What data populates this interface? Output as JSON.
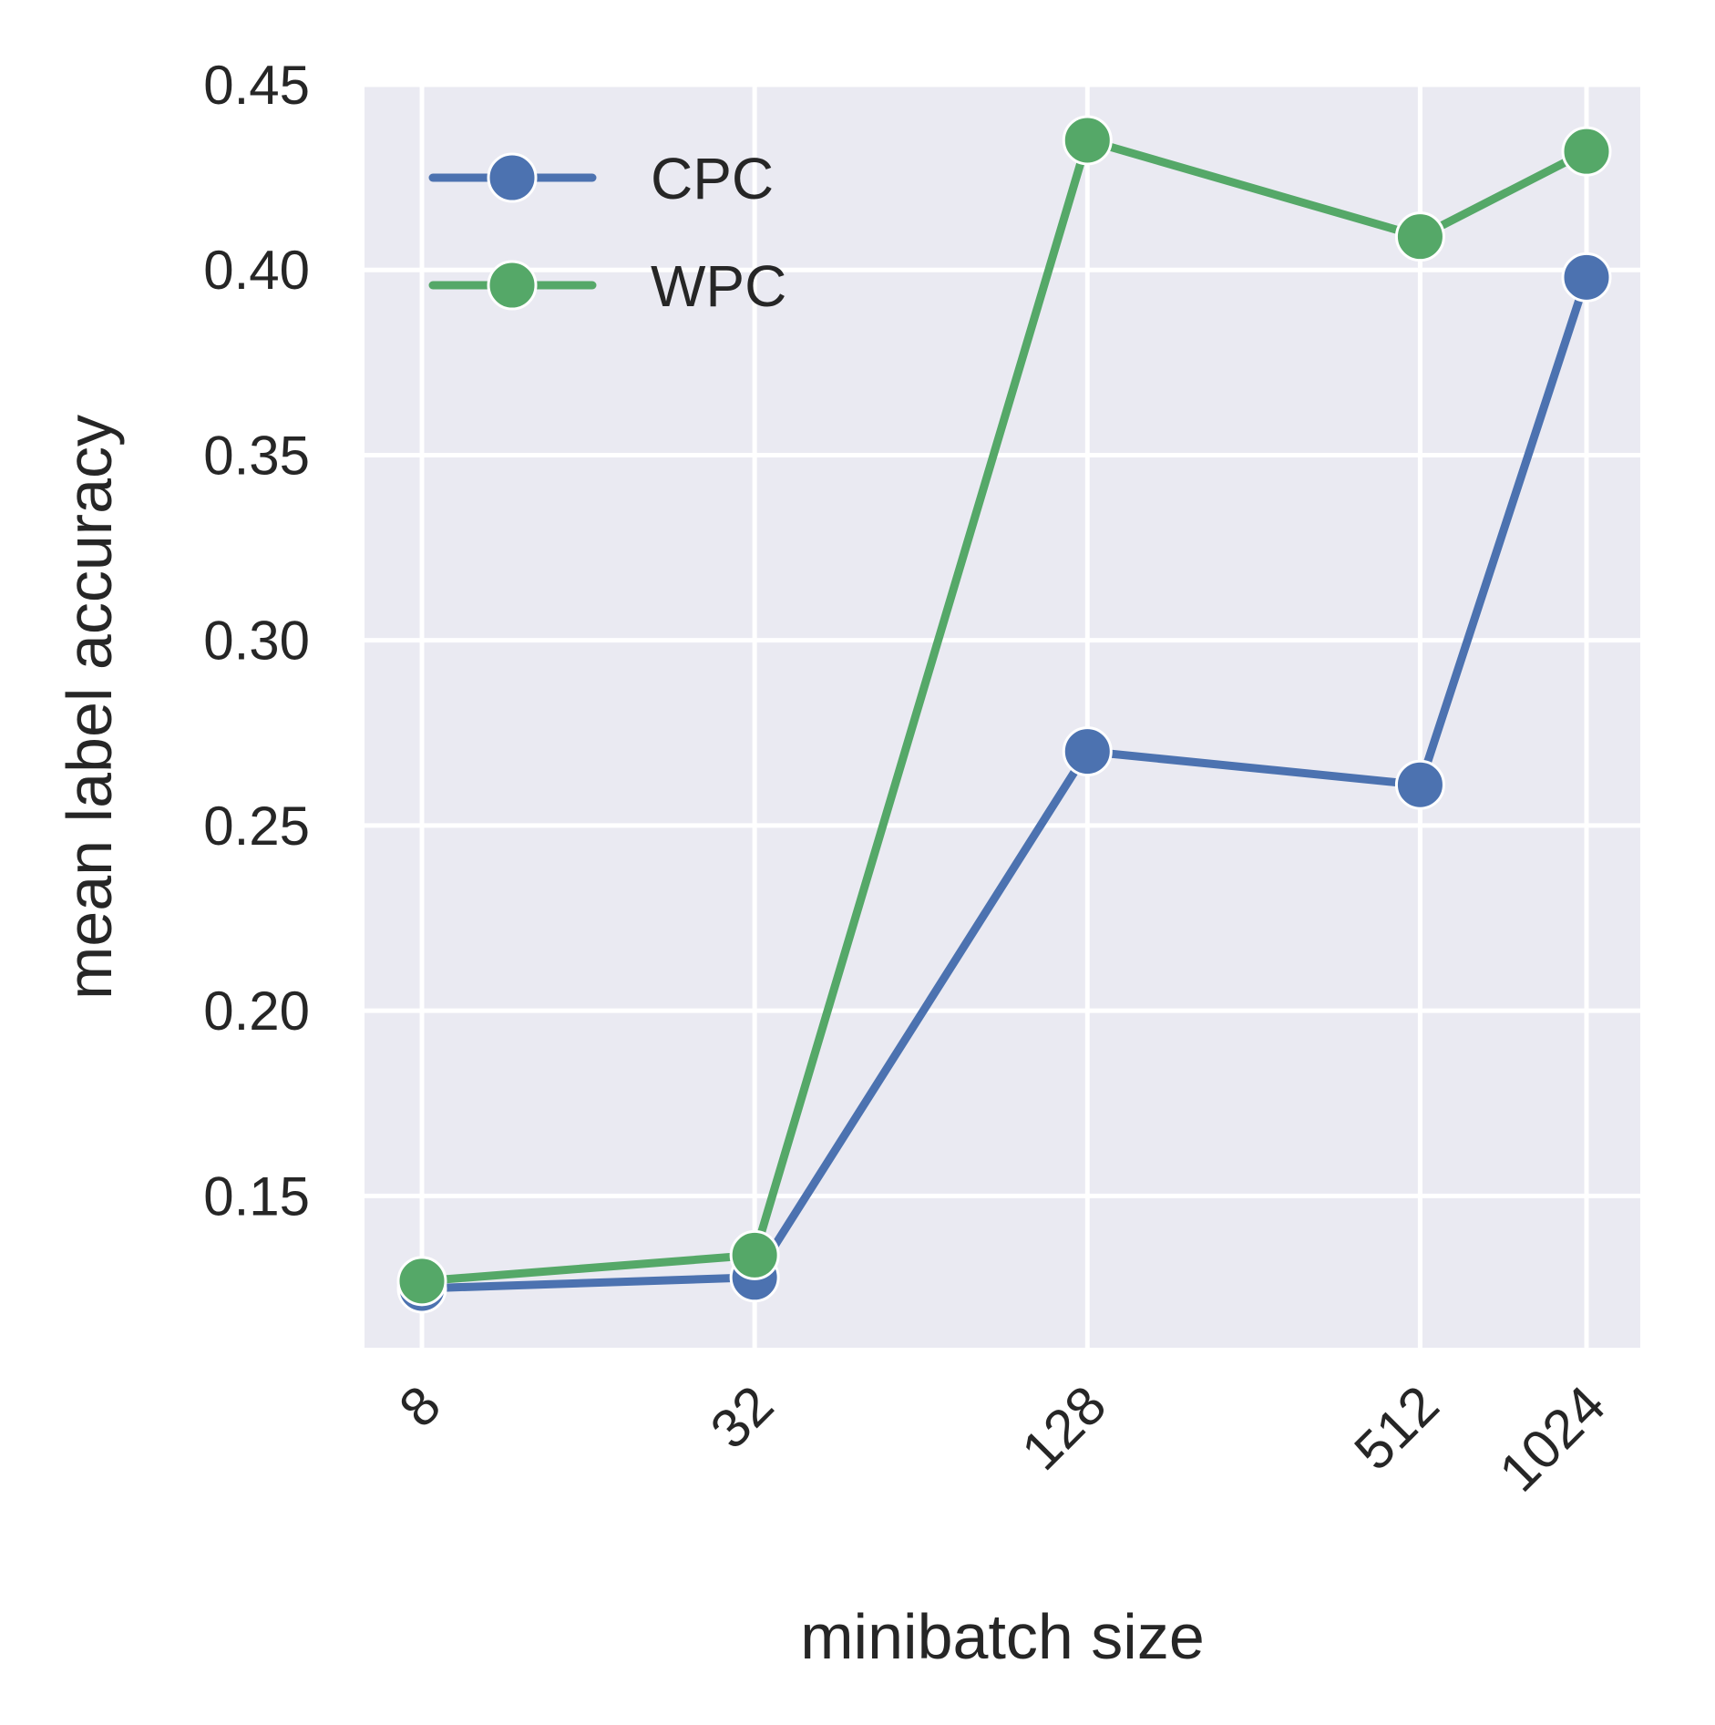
{
  "chart_data": {
    "type": "line",
    "x": [
      8,
      32,
      128,
      512,
      1024
    ],
    "x_tick_labels": [
      "8",
      "32",
      "128",
      "512",
      "1024"
    ],
    "x_scale": "log2",
    "series": [
      {
        "name": "CPC",
        "color": "#4c72b0",
        "values": [
          0.125,
          0.128,
          0.27,
          0.261,
          0.398
        ]
      },
      {
        "name": "WPC",
        "color": "#55a868",
        "values": [
          0.127,
          0.134,
          0.435,
          0.409,
          0.432
        ]
      }
    ],
    "y_ticks": [
      "0.15",
      "0.20",
      "0.25",
      "0.30",
      "0.35",
      "0.40",
      "0.45"
    ],
    "ylim": [
      0.109,
      0.45
    ],
    "xlabel": "minibatch size",
    "ylabel": "mean label accuracy",
    "grid": true,
    "legend_position": "top-left",
    "background_color": "#eaeaf2"
  }
}
